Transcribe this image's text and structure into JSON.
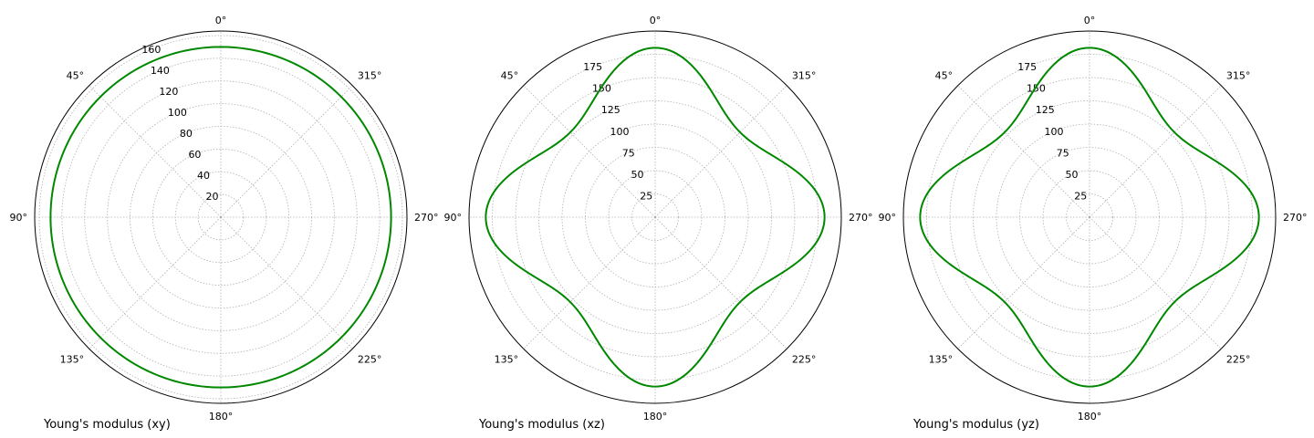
{
  "chart_data": [
    {
      "type": "line",
      "projection": "polar",
      "title": "Young's modulus (xy)",
      "theta_direction": "clockwise-from-top-mirrored",
      "theta_ticks": [
        "0°",
        "45°",
        "90°",
        "135°",
        "180°",
        "225°",
        "270°",
        "315°"
      ],
      "r_ticks": [
        "20",
        "40",
        "60",
        "80",
        "100",
        "120",
        "140",
        "160"
      ],
      "rlim": [
        0,
        164
      ],
      "grid": true,
      "color": "#008800",
      "series": [
        {
          "model": "cubic",
          "e_axis": 150,
          "e_diagonal": 150
        }
      ]
    },
    {
      "type": "line",
      "projection": "polar",
      "title": "Young's modulus (xz)",
      "theta_direction": "clockwise-from-top-mirrored",
      "theta_ticks": [
        "0°",
        "45°",
        "90°",
        "135°",
        "180°",
        "225°",
        "270°",
        "315°"
      ],
      "r_ticks": [
        "25",
        "50",
        "75",
        "100",
        "125",
        "150",
        "175"
      ],
      "rlim": [
        0,
        200
      ],
      "grid": true,
      "color": "#008800",
      "series": [
        {
          "model": "cubic",
          "e_axis": 182,
          "e_diagonal": 129
        }
      ]
    },
    {
      "type": "line",
      "projection": "polar",
      "title": "Young's modulus (yz)",
      "theta_direction": "clockwise-from-top-mirrored",
      "theta_ticks": [
        "0°",
        "45°",
        "90°",
        "135°",
        "180°",
        "225°",
        "270°",
        "315°"
      ],
      "r_ticks": [
        "25",
        "50",
        "75",
        "100",
        "125",
        "150",
        "175"
      ],
      "rlim": [
        0,
        200
      ],
      "grid": true,
      "color": "#008800",
      "series": [
        {
          "model": "cubic",
          "e_axis": 182,
          "e_diagonal": 129
        }
      ]
    }
  ]
}
